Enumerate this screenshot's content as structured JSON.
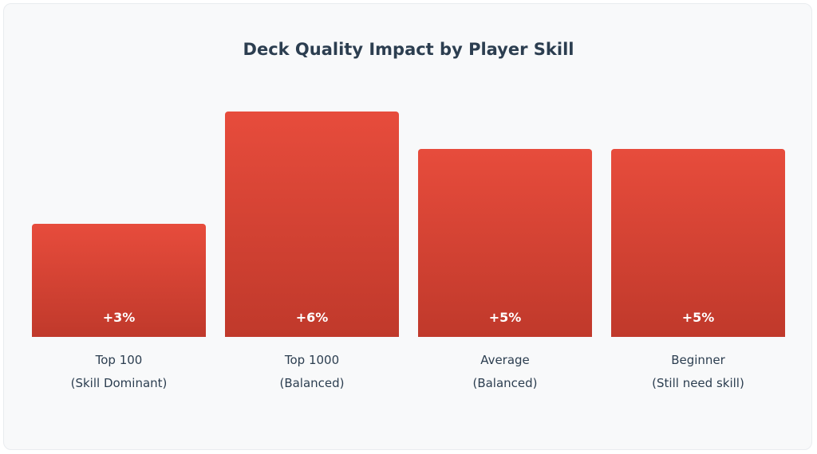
{
  "chart_data": {
    "type": "bar",
    "title": "Deck Quality Impact by Player Skill",
    "categories": [
      {
        "label": "Top 100",
        "sublabel": "(Skill Dominant)"
      },
      {
        "label": "Top 1000",
        "sublabel": "(Balanced)"
      },
      {
        "label": "Average",
        "sublabel": "(Balanced)"
      },
      {
        "label": "Beginner",
        "sublabel": "(Still need skill)"
      }
    ],
    "values": [
      3,
      6,
      5,
      5
    ],
    "value_labels": [
      "+3%",
      "+6%",
      "+5%",
      "+5%"
    ],
    "unit": "%",
    "ylim": [
      0,
      10
    ],
    "grid": false,
    "bar_color_top": "#e74c3c",
    "bar_color_bottom": "#c0392b"
  }
}
